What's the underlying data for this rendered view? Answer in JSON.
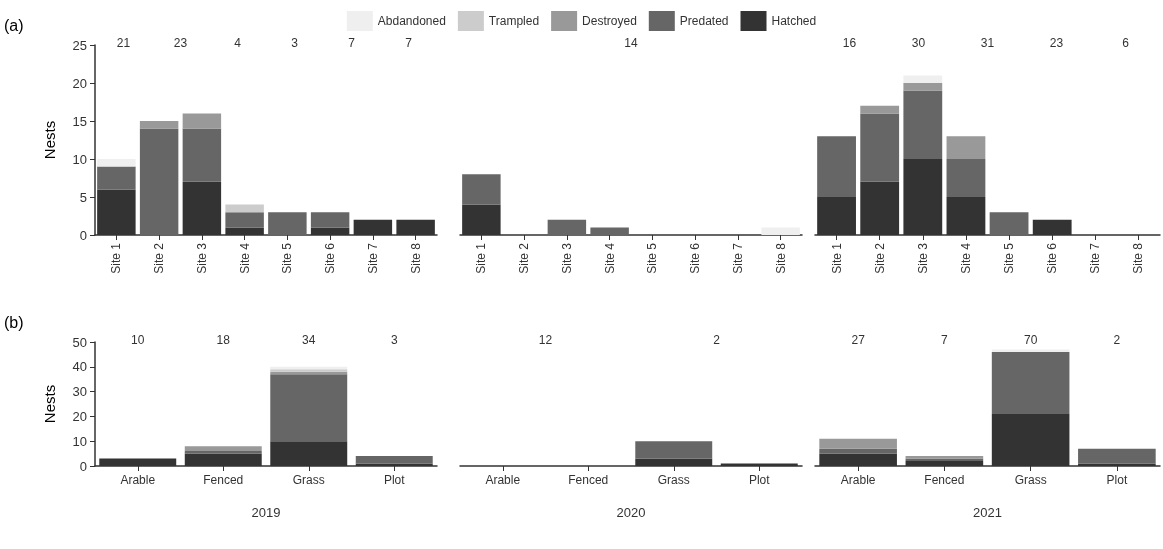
{
  "chart_data": [
    {
      "type": "bar",
      "stacked": true,
      "legend": "top",
      "title": "(a)",
      "ylabel": "Nests",
      "ylim": [
        0,
        25
      ],
      "yticks": [
        0,
        5,
        10,
        15,
        20,
        25
      ],
      "categories": [
        "Site 1",
        "Site 2",
        "Site 3",
        "Site 4",
        "Site 5",
        "Site 6",
        "Site 7",
        "Site 8"
      ],
      "series": [
        {
          "name": "Hatched",
          "color": "#333333",
          "values": [
            6,
            0,
            7,
            1,
            0,
            1,
            2,
            2
          ]
        },
        {
          "name": "Predated",
          "color": "#666666",
          "values": [
            3,
            14,
            7,
            2,
            3,
            2,
            0,
            0
          ]
        },
        {
          "name": "Destroyed",
          "color": "#999999",
          "values": [
            0,
            1,
            2,
            0,
            0,
            0,
            0,
            0
          ]
        },
        {
          "name": "Trampled",
          "color": "#cccccc",
          "values": [
            0,
            0,
            0,
            1,
            0,
            0,
            0,
            0
          ]
        },
        {
          "name": "Abdandoned",
          "color": "#efefef",
          "values": [
            1,
            0,
            0,
            0,
            0,
            0,
            0,
            0
          ]
        }
      ],
      "annotations": [
        "21",
        "23",
        "4",
        "3",
        "7",
        "7"
      ]
    },
    {
      "type": "bar",
      "stacked": true,
      "tick_labels": "x",
      "ylim": [
        0,
        25
      ],
      "yticks": [
        0,
        5,
        10,
        15,
        20,
        25
      ],
      "categories": [
        "Site 1",
        "Site 2",
        "Site 3",
        "Site 4",
        "Site 5",
        "Site 6",
        "Site 7",
        "Site 8"
      ],
      "series": [
        {
          "color": "#333333",
          "values": [
            4,
            0,
            0,
            0,
            0,
            0,
            0,
            0
          ]
        },
        {
          "color": "#666666",
          "values": [
            4,
            0,
            2,
            1,
            0,
            0,
            0,
            0
          ]
        },
        {
          "color": "#999999",
          "values": [
            0,
            0,
            0,
            0,
            0,
            0,
            0,
            0
          ]
        },
        {
          "color": "#cccccc",
          "values": [
            0,
            0,
            0,
            0,
            0,
            0,
            0,
            0
          ]
        },
        {
          "color": "#efefef",
          "values": [
            0,
            0,
            0,
            0,
            0,
            0,
            0,
            1
          ]
        }
      ],
      "annotations": [
        "14"
      ]
    },
    {
      "type": "bar",
      "stacked": true,
      "tick_labels": "x",
      "ylim": [
        0,
        25
      ],
      "yticks": [
        0,
        5,
        10,
        15,
        20,
        25
      ],
      "categories": [
        "Site 1",
        "Site 2",
        "Site 3",
        "Site 4",
        "Site 5",
        "Site 6",
        "Site 7",
        "Site 8"
      ],
      "series": [
        {
          "color": "#333333",
          "values": [
            5,
            7,
            10,
            5,
            0,
            2,
            0,
            0
          ]
        },
        {
          "color": "#666666",
          "values": [
            8,
            9,
            9,
            5,
            3,
            0,
            0,
            0
          ]
        },
        {
          "color": "#999999",
          "values": [
            0,
            1,
            1,
            3,
            0,
            0,
            0,
            0
          ]
        },
        {
          "color": "#cccccc",
          "values": [
            0,
            0,
            0,
            0,
            0,
            0,
            0,
            0
          ]
        },
        {
          "color": "#efefef",
          "values": [
            0,
            0,
            1,
            0,
            0,
            0,
            0,
            0
          ]
        }
      ],
      "annotations": [
        "16",
        "30",
        "31",
        "23",
        "6"
      ]
    },
    {
      "type": "bar",
      "stacked": true,
      "title": "(b)",
      "ylabel": "Nests",
      "xlabel": "2019",
      "ylim": [
        0,
        50
      ],
      "yticks": [
        0,
        10,
        20,
        30,
        40,
        50
      ],
      "categories": [
        "Arable",
        "Fenced",
        "Grass",
        "Plot"
      ],
      "series": [
        {
          "color": "#333333",
          "values": [
            3,
            5,
            10,
            1
          ]
        },
        {
          "color": "#666666",
          "values": [
            0,
            1,
            27,
            3
          ]
        },
        {
          "color": "#999999",
          "values": [
            0,
            2,
            1,
            0
          ]
        },
        {
          "color": "#cccccc",
          "values": [
            0,
            0,
            1,
            0
          ]
        },
        {
          "color": "#efefef",
          "values": [
            0,
            0,
            1,
            0
          ]
        }
      ],
      "annotations": [
        "10",
        "18",
        "34",
        "3"
      ]
    },
    {
      "type": "bar",
      "stacked": true,
      "tick_labels": "x",
      "xlabel": "2020",
      "ylim": [
        0,
        50
      ],
      "yticks": [
        0,
        10,
        20,
        30,
        40,
        50
      ],
      "categories": [
        "Arable",
        "Fenced",
        "Grass",
        "Plot"
      ],
      "series": [
        {
          "color": "#333333",
          "values": [
            0,
            0,
            3,
            1
          ]
        },
        {
          "color": "#666666",
          "values": [
            0,
            0,
            7,
            0
          ]
        },
        {
          "color": "#999999",
          "values": [
            0,
            0,
            0,
            0
          ]
        },
        {
          "color": "#cccccc",
          "values": [
            0,
            0,
            0,
            0
          ]
        },
        {
          "color": "#efefef",
          "values": [
            0,
            0,
            0,
            0
          ]
        }
      ],
      "annotations": [
        "12",
        "2"
      ]
    },
    {
      "type": "bar",
      "stacked": true,
      "tick_labels": "x",
      "xlabel": "2021",
      "ylim": [
        0,
        50
      ],
      "yticks": [
        0,
        10,
        20,
        30,
        40,
        50
      ],
      "categories": [
        "Arable",
        "Fenced",
        "Grass",
        "Plot"
      ],
      "series": [
        {
          "color": "#333333",
          "values": [
            5,
            2,
            21,
            1
          ]
        },
        {
          "color": "#666666",
          "values": [
            2,
            1,
            25,
            6
          ]
        },
        {
          "color": "#999999",
          "values": [
            4,
            1,
            0,
            0
          ]
        },
        {
          "color": "#cccccc",
          "values": [
            0,
            0,
            0,
            0
          ]
        },
        {
          "color": "#efefef",
          "values": [
            0,
            0,
            1,
            0
          ]
        }
      ],
      "annotations": [
        "27",
        "7",
        "70",
        "2"
      ]
    }
  ]
}
